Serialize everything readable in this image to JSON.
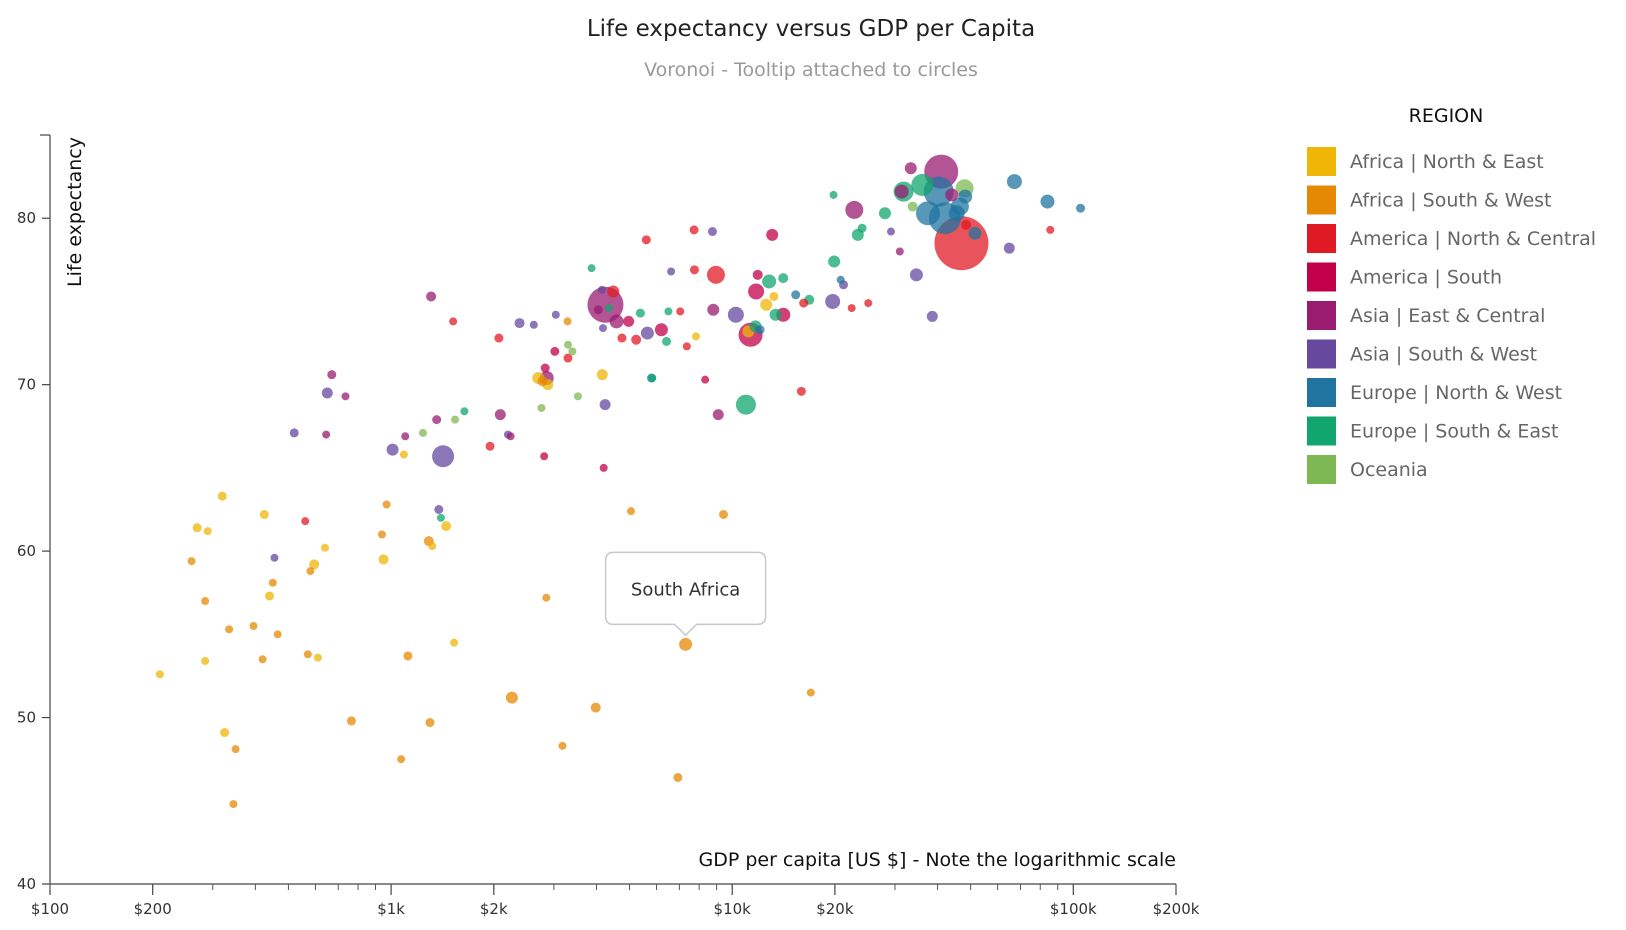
{
  "chart_data": {
    "type": "scatter",
    "title": "Life expectancy versus GDP per Capita",
    "subtitle": "Voronoi - Tooltip attached to circles",
    "xlabel": "GDP per capita [US $] - Note the logarithmic scale",
    "ylabel": "Life expectancy",
    "x_scale": "log",
    "xlim": [
      100,
      200000
    ],
    "ylim": [
      40,
      85
    ],
    "x_ticks": [
      {
        "value": 100,
        "label": "$100"
      },
      {
        "value": 200,
        "label": "$200"
      },
      {
        "value": 1000,
        "label": "$1k"
      },
      {
        "value": 2000,
        "label": "$2k"
      },
      {
        "value": 10000,
        "label": "$10k"
      },
      {
        "value": 20000,
        "label": "$20k"
      },
      {
        "value": 100000,
        "label": "$100k"
      },
      {
        "value": 200000,
        "label": "$200k"
      }
    ],
    "y_ticks": [
      {
        "value": 40,
        "label": "40"
      },
      {
        "value": 50,
        "label": "50"
      },
      {
        "value": 60,
        "label": "60"
      },
      {
        "value": 70,
        "label": "70"
      },
      {
        "value": 80,
        "label": "80"
      }
    ],
    "grid": false,
    "legend": {
      "title": "REGION",
      "placement": "right",
      "items": [
        {
          "name": "Africa | North & East",
          "color": "#EFB605"
        },
        {
          "name": "Africa | South & West",
          "color": "#E58903"
        },
        {
          "name": "America | North & Central",
          "color": "#E01A25"
        },
        {
          "name": "America | South",
          "color": "#C20049"
        },
        {
          "name": "Asia | East & Central",
          "color": "#991C71"
        },
        {
          "name": "Asia | South & West",
          "color": "#66489F"
        },
        {
          "name": "Europe | North & West",
          "color": "#2074A0"
        },
        {
          "name": "Europe | South & East",
          "color": "#10A66E"
        },
        {
          "name": "Oceania",
          "color": "#7EB852"
        }
      ]
    },
    "tooltip": {
      "label": "South Africa",
      "x": 7300,
      "y": 54.4
    },
    "points": [
      {
        "x": 210,
        "y": 52.6,
        "r": 4,
        "g": 0
      },
      {
        "x": 260,
        "y": 59.4,
        "r": 4,
        "g": 1
      },
      {
        "x": 270,
        "y": 61.4,
        "r": 4.5,
        "g": 0
      },
      {
        "x": 285,
        "y": 57.0,
        "r": 4,
        "g": 1
      },
      {
        "x": 285,
        "y": 53.4,
        "r": 4,
        "g": 0
      },
      {
        "x": 290,
        "y": 61.2,
        "r": 4,
        "g": 0
      },
      {
        "x": 320,
        "y": 63.3,
        "r": 4.5,
        "g": 0
      },
      {
        "x": 325,
        "y": 49.1,
        "r": 4.5,
        "g": 0
      },
      {
        "x": 335,
        "y": 55.3,
        "r": 4,
        "g": 1
      },
      {
        "x": 345,
        "y": 44.8,
        "r": 4,
        "g": 1
      },
      {
        "x": 350,
        "y": 48.1,
        "r": 4,
        "g": 1
      },
      {
        "x": 395,
        "y": 55.5,
        "r": 4,
        "g": 1
      },
      {
        "x": 420,
        "y": 53.5,
        "r": 4,
        "g": 1
      },
      {
        "x": 425,
        "y": 62.2,
        "r": 4.5,
        "g": 0
      },
      {
        "x": 440,
        "y": 57.3,
        "r": 4.5,
        "g": 0
      },
      {
        "x": 450,
        "y": 58.1,
        "r": 4,
        "g": 1
      },
      {
        "x": 455,
        "y": 59.6,
        "r": 4,
        "g": 5
      },
      {
        "x": 465,
        "y": 55.0,
        "r": 4,
        "g": 1
      },
      {
        "x": 520,
        "y": 67.1,
        "r": 4.5,
        "g": 5
      },
      {
        "x": 560,
        "y": 61.8,
        "r": 4,
        "g": 2
      },
      {
        "x": 570,
        "y": 53.8,
        "r": 4,
        "g": 1
      },
      {
        "x": 580,
        "y": 58.8,
        "r": 4,
        "g": 1
      },
      {
        "x": 595,
        "y": 59.2,
        "r": 5,
        "g": 0
      },
      {
        "x": 610,
        "y": 53.6,
        "r": 4,
        "g": 0
      },
      {
        "x": 640,
        "y": 60.2,
        "r": 4,
        "g": 0
      },
      {
        "x": 645,
        "y": 67.0,
        "r": 4,
        "g": 4
      },
      {
        "x": 650,
        "y": 69.5,
        "r": 5.5,
        "g": 5
      },
      {
        "x": 670,
        "y": 70.6,
        "r": 4.5,
        "g": 4
      },
      {
        "x": 735,
        "y": 69.3,
        "r": 4,
        "g": 4
      },
      {
        "x": 765,
        "y": 49.8,
        "r": 4.5,
        "g": 1
      },
      {
        "x": 940,
        "y": 61.0,
        "r": 4,
        "g": 1
      },
      {
        "x": 950,
        "y": 59.5,
        "r": 5,
        "g": 0
      },
      {
        "x": 970,
        "y": 62.8,
        "r": 4,
        "g": 1
      },
      {
        "x": 1010,
        "y": 66.1,
        "r": 6,
        "g": 5
      },
      {
        "x": 1070,
        "y": 47.5,
        "r": 4,
        "g": 1
      },
      {
        "x": 1090,
        "y": 65.8,
        "r": 4,
        "g": 0
      },
      {
        "x": 1100,
        "y": 66.9,
        "r": 4,
        "g": 4
      },
      {
        "x": 1120,
        "y": 53.7,
        "r": 4.5,
        "g": 1
      },
      {
        "x": 1240,
        "y": 67.1,
        "r": 4,
        "g": 8
      },
      {
        "x": 1290,
        "y": 60.6,
        "r": 5,
        "g": 1
      },
      {
        "x": 1300,
        "y": 49.7,
        "r": 4.5,
        "g": 1
      },
      {
        "x": 1310,
        "y": 75.3,
        "r": 5,
        "g": 4
      },
      {
        "x": 1320,
        "y": 60.3,
        "r": 4,
        "g": 0
      },
      {
        "x": 1360,
        "y": 67.9,
        "r": 4.5,
        "g": 4
      },
      {
        "x": 1380,
        "y": 62.5,
        "r": 4.5,
        "g": 5
      },
      {
        "x": 1400,
        "y": 62.0,
        "r": 4,
        "g": 7
      },
      {
        "x": 1420,
        "y": 65.7,
        "r": 11,
        "g": 5
      },
      {
        "x": 1450,
        "y": 61.5,
        "r": 5,
        "g": 0
      },
      {
        "x": 1520,
        "y": 73.8,
        "r": 4,
        "g": 2
      },
      {
        "x": 1530,
        "y": 54.5,
        "r": 4,
        "g": 0
      },
      {
        "x": 1540,
        "y": 67.9,
        "r": 4,
        "g": 8
      },
      {
        "x": 1640,
        "y": 68.4,
        "r": 4,
        "g": 7
      },
      {
        "x": 1950,
        "y": 66.3,
        "r": 4.5,
        "g": 2
      },
      {
        "x": 2070,
        "y": 72.8,
        "r": 4.5,
        "g": 2
      },
      {
        "x": 2090,
        "y": 68.2,
        "r": 5.5,
        "g": 4
      },
      {
        "x": 2200,
        "y": 67.0,
        "r": 4,
        "g": 5
      },
      {
        "x": 2260,
        "y": 51.2,
        "r": 6,
        "g": 1
      },
      {
        "x": 2240,
        "y": 66.9,
        "r": 4,
        "g": 4
      },
      {
        "x": 2380,
        "y": 73.7,
        "r": 5,
        "g": 5
      },
      {
        "x": 2620,
        "y": 73.6,
        "r": 4,
        "g": 5
      },
      {
        "x": 2700,
        "y": 70.4,
        "r": 6,
        "g": 0
      },
      {
        "x": 2760,
        "y": 68.6,
        "r": 4,
        "g": 8
      },
      {
        "x": 2780,
        "y": 70.2,
        "r": 5,
        "g": 1
      },
      {
        "x": 2810,
        "y": 65.7,
        "r": 4,
        "g": 3
      },
      {
        "x": 2850,
        "y": 57.2,
        "r": 4,
        "g": 1
      },
      {
        "x": 2830,
        "y": 71.0,
        "r": 4.5,
        "g": 3
      },
      {
        "x": 2860,
        "y": 70.4,
        "r": 7,
        "g": 4
      },
      {
        "x": 2880,
        "y": 70.0,
        "r": 5.5,
        "g": 0
      },
      {
        "x": 3020,
        "y": 72.0,
        "r": 4.5,
        "g": 3
      },
      {
        "x": 3040,
        "y": 74.2,
        "r": 4,
        "g": 5
      },
      {
        "x": 3180,
        "y": 48.3,
        "r": 4,
        "g": 1
      },
      {
        "x": 3290,
        "y": 73.8,
        "r": 4,
        "g": 1
      },
      {
        "x": 3300,
        "y": 71.6,
        "r": 4.5,
        "g": 2
      },
      {
        "x": 3300,
        "y": 72.4,
        "r": 4,
        "g": 8
      },
      {
        "x": 3400,
        "y": 72.0,
        "r": 4,
        "g": 8
      },
      {
        "x": 3530,
        "y": 69.3,
        "r": 4,
        "g": 8
      },
      {
        "x": 3870,
        "y": 77.0,
        "r": 4,
        "g": 7
      },
      {
        "x": 3980,
        "y": 50.6,
        "r": 5,
        "g": 1
      },
      {
        "x": 4050,
        "y": 74.5,
        "r": 4.5,
        "g": 4
      },
      {
        "x": 4150,
        "y": 75.7,
        "r": 4,
        "g": 5
      },
      {
        "x": 4160,
        "y": 70.6,
        "r": 5.5,
        "g": 0
      },
      {
        "x": 4180,
        "y": 73.4,
        "r": 4,
        "g": 5
      },
      {
        "x": 4200,
        "y": 65.0,
        "r": 4,
        "g": 3
      },
      {
        "x": 4240,
        "y": 68.8,
        "r": 5.5,
        "g": 5
      },
      {
        "x": 4250,
        "y": 74.8,
        "r": 18,
        "g": 4
      },
      {
        "x": 4350,
        "y": 74.6,
        "r": 4,
        "g": 7
      },
      {
        "x": 4480,
        "y": 75.6,
        "r": 6,
        "g": 2
      },
      {
        "x": 4580,
        "y": 73.8,
        "r": 7,
        "g": 4
      },
      {
        "x": 4750,
        "y": 72.8,
        "r": 4.5,
        "g": 2
      },
      {
        "x": 4970,
        "y": 73.8,
        "r": 5.5,
        "g": 3
      },
      {
        "x": 5050,
        "y": 62.4,
        "r": 4,
        "g": 1
      },
      {
        "x": 5230,
        "y": 72.7,
        "r": 5,
        "g": 2
      },
      {
        "x": 5380,
        "y": 74.3,
        "r": 4.5,
        "g": 7
      },
      {
        "x": 5600,
        "y": 78.7,
        "r": 4.5,
        "g": 2
      },
      {
        "x": 5640,
        "y": 73.1,
        "r": 6.5,
        "g": 5
      },
      {
        "x": 5800,
        "y": 70.4,
        "r": 4.5,
        "g": 6
      },
      {
        "x": 5830,
        "y": 70.4,
        "r": 4,
        "g": 7
      },
      {
        "x": 6200,
        "y": 73.3,
        "r": 6.5,
        "g": 3
      },
      {
        "x": 6420,
        "y": 72.6,
        "r": 4.5,
        "g": 7
      },
      {
        "x": 6500,
        "y": 74.4,
        "r": 4,
        "g": 7
      },
      {
        "x": 6620,
        "y": 76.8,
        "r": 4,
        "g": 5
      },
      {
        "x": 6930,
        "y": 46.4,
        "r": 4.5,
        "g": 1
      },
      {
        "x": 7040,
        "y": 74.4,
        "r": 4,
        "g": 2
      },
      {
        "x": 7300,
        "y": 54.4,
        "r": 6.5,
        "g": 1
      },
      {
        "x": 7360,
        "y": 72.3,
        "r": 4,
        "g": 2
      },
      {
        "x": 7750,
        "y": 76.9,
        "r": 4.5,
        "g": 2
      },
      {
        "x": 7730,
        "y": 79.3,
        "r": 4.5,
        "g": 2
      },
      {
        "x": 7830,
        "y": 72.9,
        "r": 4,
        "g": 0
      },
      {
        "x": 8330,
        "y": 70.3,
        "r": 4,
        "g": 3
      },
      {
        "x": 8800,
        "y": 74.5,
        "r": 6,
        "g": 4
      },
      {
        "x": 8750,
        "y": 79.2,
        "r": 4.5,
        "g": 5
      },
      {
        "x": 8960,
        "y": 76.6,
        "r": 9,
        "g": 2
      },
      {
        "x": 9100,
        "y": 68.2,
        "r": 5.5,
        "g": 4
      },
      {
        "x": 9430,
        "y": 62.2,
        "r": 4.5,
        "g": 1
      },
      {
        "x": 10250,
        "y": 74.2,
        "r": 8,
        "g": 5
      },
      {
        "x": 10970,
        "y": 68.8,
        "r": 10,
        "g": 7
      },
      {
        "x": 11150,
        "y": 73.2,
        "r": 6,
        "g": 0
      },
      {
        "x": 11320,
        "y": 73.0,
        "r": 12,
        "g": 3
      },
      {
        "x": 11700,
        "y": 73.5,
        "r": 6,
        "g": 7
      },
      {
        "x": 11880,
        "y": 76.6,
        "r": 5,
        "g": 3
      },
      {
        "x": 11750,
        "y": 75.6,
        "r": 8,
        "g": 3
      },
      {
        "x": 12070,
        "y": 73.3,
        "r": 4.5,
        "g": 6
      },
      {
        "x": 12580,
        "y": 74.8,
        "r": 6,
        "g": 0
      },
      {
        "x": 12830,
        "y": 76.2,
        "r": 7,
        "g": 7
      },
      {
        "x": 13100,
        "y": 79.0,
        "r": 6,
        "g": 3
      },
      {
        "x": 13250,
        "y": 75.3,
        "r": 4.5,
        "g": 0
      },
      {
        "x": 13400,
        "y": 74.2,
        "r": 6,
        "g": 7
      },
      {
        "x": 14110,
        "y": 76.4,
        "r": 5,
        "g": 7
      },
      {
        "x": 14120,
        "y": 74.2,
        "r": 7,
        "g": 3
      },
      {
        "x": 15350,
        "y": 75.4,
        "r": 4.5,
        "g": 6
      },
      {
        "x": 15950,
        "y": 69.6,
        "r": 4.5,
        "g": 2
      },
      {
        "x": 16200,
        "y": 74.9,
        "r": 4.5,
        "g": 2
      },
      {
        "x": 16820,
        "y": 75.1,
        "r": 5,
        "g": 7
      },
      {
        "x": 17000,
        "y": 51.5,
        "r": 4,
        "g": 1
      },
      {
        "x": 19700,
        "y": 75.0,
        "r": 7.5,
        "g": 5
      },
      {
        "x": 19820,
        "y": 81.4,
        "r": 4,
        "g": 7
      },
      {
        "x": 19900,
        "y": 77.4,
        "r": 6,
        "g": 7
      },
      {
        "x": 20800,
        "y": 76.3,
        "r": 4,
        "g": 6
      },
      {
        "x": 21200,
        "y": 76.0,
        "r": 4.5,
        "g": 5
      },
      {
        "x": 22400,
        "y": 74.6,
        "r": 4,
        "g": 2
      },
      {
        "x": 22800,
        "y": 80.5,
        "r": 9,
        "g": 4
      },
      {
        "x": 23350,
        "y": 79.0,
        "r": 6,
        "g": 7
      },
      {
        "x": 24030,
        "y": 79.4,
        "r": 4.5,
        "g": 7
      },
      {
        "x": 25050,
        "y": 74.9,
        "r": 4,
        "g": 2
      },
      {
        "x": 28040,
        "y": 80.3,
        "r": 6,
        "g": 7
      },
      {
        "x": 29210,
        "y": 79.2,
        "r": 4,
        "g": 5
      },
      {
        "x": 31000,
        "y": 78.0,
        "r": 4,
        "g": 4
      },
      {
        "x": 31800,
        "y": 81.6,
        "r": 10,
        "g": 7
      },
      {
        "x": 31400,
        "y": 81.6,
        "r": 7,
        "g": 4
      },
      {
        "x": 33380,
        "y": 83.0,
        "r": 6,
        "g": 4
      },
      {
        "x": 33800,
        "y": 80.7,
        "r": 5,
        "g": 8
      },
      {
        "x": 34670,
        "y": 76.6,
        "r": 6.5,
        "g": 5
      },
      {
        "x": 36100,
        "y": 82.0,
        "r": 11,
        "g": 7
      },
      {
        "x": 37500,
        "y": 80.3,
        "r": 12,
        "g": 6
      },
      {
        "x": 38600,
        "y": 74.1,
        "r": 5.5,
        "g": 5
      },
      {
        "x": 40300,
        "y": 81.6,
        "r": 15,
        "g": 6
      },
      {
        "x": 41000,
        "y": 82.8,
        "r": 17,
        "g": 4
      },
      {
        "x": 42000,
        "y": 80.0,
        "r": 16,
        "g": 6
      },
      {
        "x": 44000,
        "y": 81.4,
        "r": 6.5,
        "g": 4
      },
      {
        "x": 45500,
        "y": 80.3,
        "r": 8,
        "g": 6
      },
      {
        "x": 47000,
        "y": 78.5,
        "r": 27,
        "g": 2
      },
      {
        "x": 46500,
        "y": 80.7,
        "r": 9,
        "g": 6
      },
      {
        "x": 48000,
        "y": 81.8,
        "r": 9,
        "g": 8
      },
      {
        "x": 48200,
        "y": 81.3,
        "r": 7,
        "g": 6
      },
      {
        "x": 48500,
        "y": 79.6,
        "r": 5,
        "g": 2
      },
      {
        "x": 51500,
        "y": 79.1,
        "r": 6.5,
        "g": 6
      },
      {
        "x": 64900,
        "y": 78.2,
        "r": 5.5,
        "g": 5
      },
      {
        "x": 67200,
        "y": 82.2,
        "r": 7.5,
        "g": 6
      },
      {
        "x": 84000,
        "y": 81.0,
        "r": 7,
        "g": 6
      },
      {
        "x": 85600,
        "y": 79.3,
        "r": 4,
        "g": 2
      },
      {
        "x": 105000,
        "y": 80.6,
        "r": 4.5,
        "g": 6
      }
    ]
  }
}
